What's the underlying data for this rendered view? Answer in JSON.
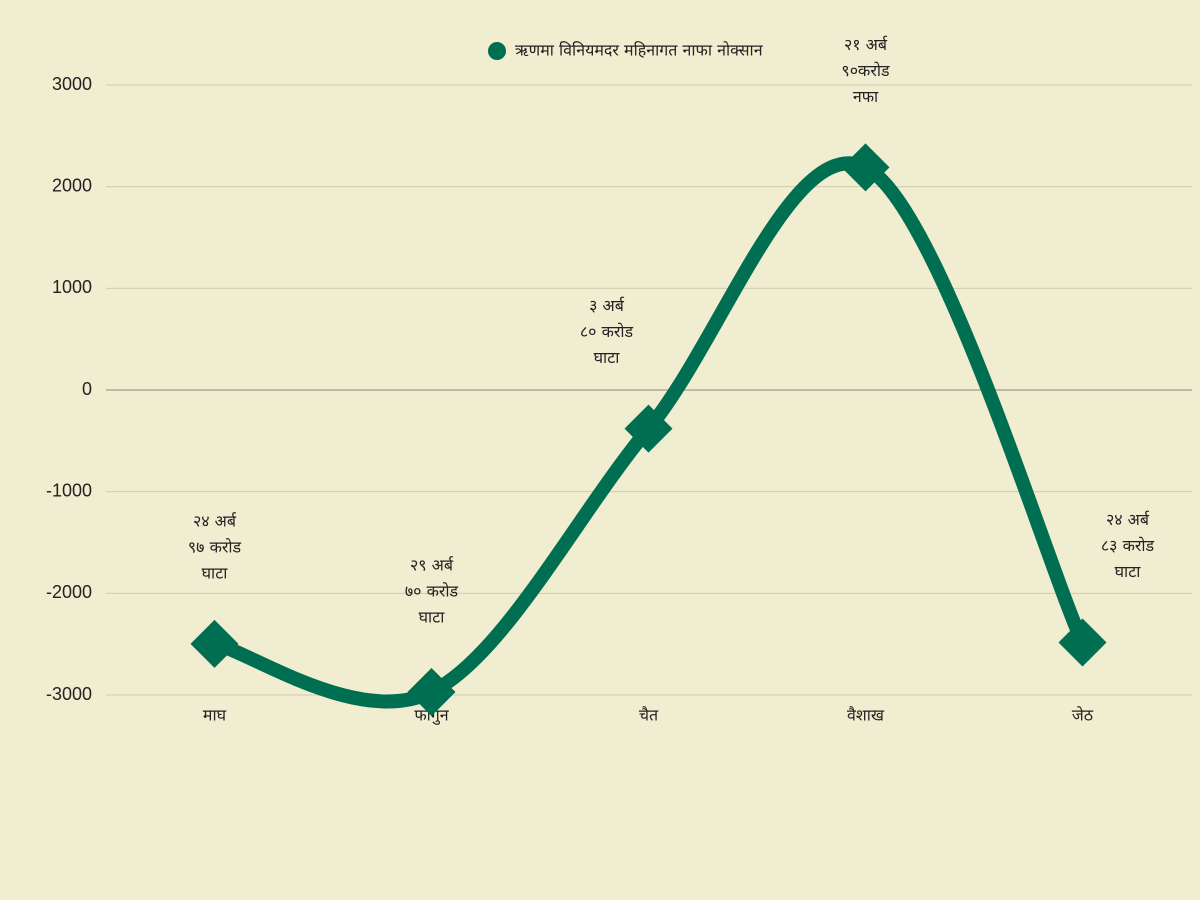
{
  "chart_data": {
    "type": "line",
    "categories": [
      "माघ",
      "फागुन",
      "चैत",
      "वैशाख",
      "जेठ"
    ],
    "series": [
      {
        "name": "ऋणमा विनियमदर महिनागत नाफा नोक्सान",
        "color": "#006e50",
        "values": [
          -2497,
          -2970,
          -380,
          2190,
          -2483
        ],
        "value_labels": [
          [
            "२४ अर्ब",
            "९७ करोड",
            "घाटा"
          ],
          [
            "२९ अर्ब",
            "७० करोड",
            "घाटा"
          ],
          [
            "३ अर्ब",
            "८० करोड",
            "घाटा"
          ],
          [
            "२१ अर्ब",
            "९०करोड",
            "नफा"
          ],
          [
            "२४ अर्ब",
            "८३ करोड",
            "घाटा"
          ]
        ]
      }
    ],
    "ylim": [
      -3000,
      3000
    ],
    "yticks": [
      -3000,
      -2000,
      -1000,
      0,
      1000,
      2000,
      3000
    ],
    "grid": true,
    "legend": "top"
  }
}
